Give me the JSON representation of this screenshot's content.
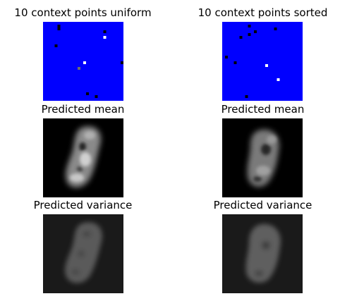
{
  "figure": {
    "titles": {
      "uniform_context": "10 context points uniform",
      "sorted_context": "10 context points sorted",
      "mean_left": "Predicted mean",
      "mean_right": "Predicted mean",
      "variance_left": "Predicted variance",
      "variance_right": "Predicted variance"
    },
    "colors": {
      "mask_background": "#0000ff",
      "mean_background": "#000000",
      "variance_background": "#1a1a1a"
    },
    "context_points": {
      "uniform": [
        {
          "col": 5,
          "row": 2,
          "gray": 0
        },
        {
          "col": 21,
          "row": 3,
          "gray": 0
        },
        {
          "col": 21,
          "row": 5,
          "gray": 255
        },
        {
          "col": 4,
          "row": 8,
          "gray": 0
        },
        {
          "col": 27,
          "row": 14,
          "gray": 0
        },
        {
          "col": 14,
          "row": 14,
          "gray": 255
        },
        {
          "col": 12,
          "row": 16,
          "gray": 110
        },
        {
          "col": 15,
          "row": 25,
          "gray": 0
        },
        {
          "col": 18,
          "row": 26,
          "gray": 0
        },
        {
          "col": 5,
          "row": 1,
          "gray": 0
        }
      ],
      "sorted": [
        {
          "col": 9,
          "row": 1,
          "gray": 0
        },
        {
          "col": 18,
          "row": 2,
          "gray": 0
        },
        {
          "col": 11,
          "row": 3,
          "gray": 0
        },
        {
          "col": 9,
          "row": 4,
          "gray": 0
        },
        {
          "col": 6,
          "row": 5,
          "gray": 0
        },
        {
          "col": 1,
          "row": 12,
          "gray": 0
        },
        {
          "col": 4,
          "row": 14,
          "gray": 0
        },
        {
          "col": 15,
          "row": 15,
          "gray": 255
        },
        {
          "col": 19,
          "row": 20,
          "gray": 255
        },
        {
          "col": 8,
          "row": 26,
          "gray": 0
        }
      ]
    }
  }
}
